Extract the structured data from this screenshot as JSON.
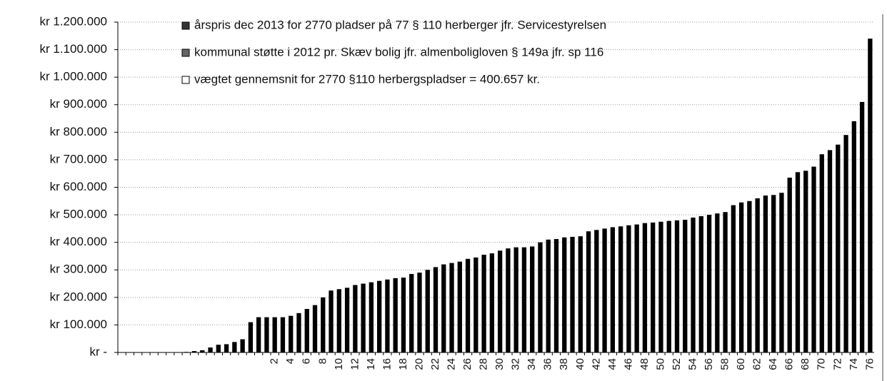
{
  "chart_data": {
    "type": "bar",
    "legend": [
      "årspris dec 2013 for 2770 pladser på 77 § 110 herberger jfr. Servicestyrelsen",
      "kommunal støtte i 2012 pr. Skæv bolig jfr. almenboligloven § 149a jfr. sp 116",
      "vægtet gennemsnit for 2770 §110 herbergspladser = 400.657 kr."
    ],
    "categories": [
      null,
      null,
      null,
      null,
      null,
      null,
      null,
      null,
      null,
      null,
      null,
      null,
      null,
      null,
      null,
      null,
      null,
      null,
      null,
      "2",
      null,
      "4",
      null,
      "6",
      null,
      "8",
      null,
      "10",
      null,
      "12",
      null,
      "14",
      null,
      "16",
      null,
      "18",
      null,
      "20",
      null,
      "22",
      null,
      "24",
      null,
      "26",
      null,
      "28",
      null,
      "30",
      null,
      "32",
      null,
      "34",
      null,
      "36",
      null,
      "38",
      null,
      "40",
      null,
      "42",
      null,
      "44",
      null,
      "46",
      null,
      "48",
      null,
      "50",
      null,
      "52",
      null,
      "54",
      null,
      "56",
      null,
      "58",
      null,
      "60",
      null,
      "62",
      null,
      "64",
      null,
      "66",
      null,
      "68",
      null,
      "70",
      null,
      "72",
      null,
      "74",
      null,
      "76"
    ],
    "values": [
      0,
      0,
      0,
      0,
      0,
      0,
      0,
      0,
      2000,
      5000,
      8000,
      18000,
      28000,
      30000,
      38000,
      48000,
      110000,
      128000,
      128000,
      128000,
      128000,
      133000,
      143000,
      158000,
      172000,
      200000,
      225000,
      230000,
      235000,
      245000,
      250000,
      255000,
      260000,
      265000,
      270000,
      272000,
      285000,
      290000,
      300000,
      310000,
      320000,
      325000,
      330000,
      340000,
      345000,
      355000,
      360000,
      370000,
      378000,
      382000,
      382000,
      385000,
      400000,
      410000,
      412000,
      418000,
      420000,
      422000,
      440000,
      445000,
      450000,
      455000,
      458000,
      462000,
      465000,
      470000,
      472000,
      475000,
      478000,
      480000,
      482000,
      490000,
      495000,
      500000,
      505000,
      510000,
      535000,
      545000,
      550000,
      560000,
      570000,
      572000,
      580000,
      635000,
      655000,
      660000,
      675000,
      720000,
      735000,
      755000,
      790000,
      840000,
      910000,
      1140000
    ],
    "color": "#000000",
    "ylim": [
      0,
      1200000
    ],
    "yticks": [
      {
        "value": 0,
        "label": "kr -"
      },
      {
        "value": 100000,
        "label": "kr 100.000"
      },
      {
        "value": 200000,
        "label": "kr 200.000"
      },
      {
        "value": 300000,
        "label": "kr 300.000"
      },
      {
        "value": 400000,
        "label": "kr 400.000"
      },
      {
        "value": 500000,
        "label": "kr 500.000"
      },
      {
        "value": 600000,
        "label": "kr 600.000"
      },
      {
        "value": 700000,
        "label": "kr 700.000"
      },
      {
        "value": 800000,
        "label": "kr 800.000"
      },
      {
        "value": 900000,
        "label": "kr 900.000"
      },
      {
        "value": 1000000,
        "label": "kr 1.000.000"
      },
      {
        "value": 1100000,
        "label": "kr 1.100.000"
      },
      {
        "value": 1200000,
        "label": "kr 1.200.000"
      }
    ],
    "grid": true
  }
}
